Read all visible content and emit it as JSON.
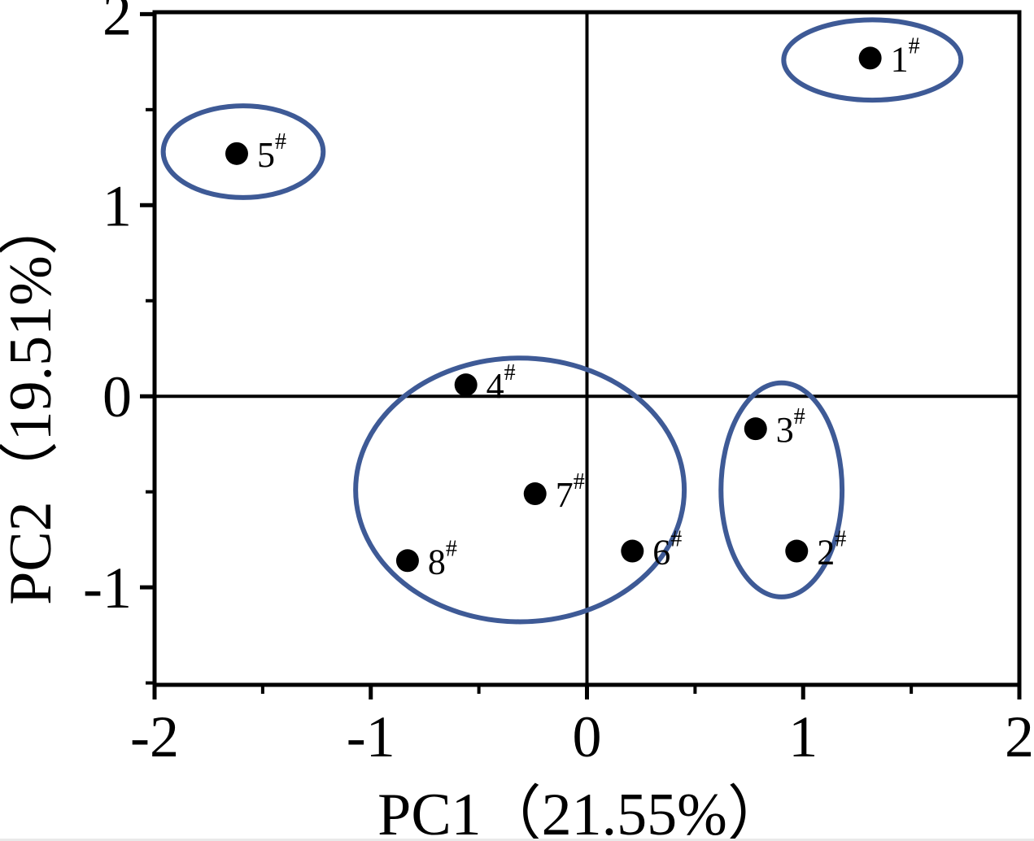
{
  "chart_data": {
    "type": "scatter",
    "title": "",
    "xlabel": "PC1（21.55%）",
    "ylabel": "PC2（19.51%）",
    "xlim": [
      -2,
      2
    ],
    "ylim": [
      -1.51,
      2.01
    ],
    "grid": false,
    "legend": "none",
    "zero_lines": true,
    "x_major_ticks": [
      -2,
      -1,
      0,
      1,
      2
    ],
    "x_tick_labels": [
      "-2",
      "-1",
      "0",
      "1",
      "2"
    ],
    "x_minor_ticks": [
      -1.5,
      -0.5,
      0.5,
      1.5
    ],
    "y_major_ticks": [
      -1,
      0,
      1,
      2
    ],
    "y_tick_labels": [
      "-1",
      "0",
      "1",
      "2"
    ],
    "y_minor_ticks": [
      -1.5,
      -0.5,
      0.5,
      1.5
    ],
    "points": [
      {
        "label": "1#",
        "x": 1.31,
        "y": 1.77
      },
      {
        "label": "2#",
        "x": 0.97,
        "y": -0.81
      },
      {
        "label": "3#",
        "x": 0.78,
        "y": -0.17
      },
      {
        "label": "4#",
        "x": -0.56,
        "y": 0.06
      },
      {
        "label": "5#",
        "x": -1.62,
        "y": 1.27
      },
      {
        "label": "6#",
        "x": 0.21,
        "y": -0.81
      },
      {
        "label": "7#",
        "x": -0.24,
        "y": -0.51
      },
      {
        "label": "8#",
        "x": -0.83,
        "y": -0.86
      }
    ],
    "clusters": [
      {
        "members": [
          "1#"
        ],
        "cx": 1.32,
        "cy": 1.76,
        "rx": 0.41,
        "ry": 0.21
      },
      {
        "members": [
          "5#"
        ],
        "cx": -1.59,
        "cy": 1.28,
        "rx": 0.37,
        "ry": 0.24
      },
      {
        "members": [
          "4#",
          "6#",
          "7#",
          "8#"
        ],
        "cx": -0.31,
        "cy": -0.49,
        "rx": 0.76,
        "ry": 0.69
      },
      {
        "members": [
          "2#",
          "3#"
        ],
        "cx": 0.9,
        "cy": -0.49,
        "rx": 0.28,
        "ry": 0.56
      }
    ],
    "colors": {
      "point": "#000000",
      "cluster_ellipse": "#3e5a96",
      "axis": "#000000",
      "background": "#ffffff"
    },
    "marker_radius_px": 14
  }
}
